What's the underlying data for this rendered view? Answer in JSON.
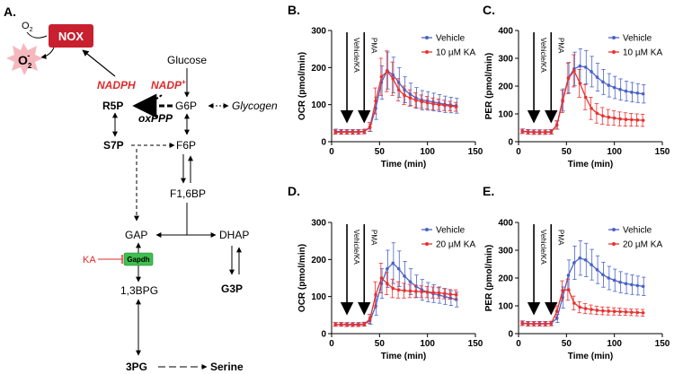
{
  "figure": {
    "panel_labels": [
      "A.",
      "B.",
      "C.",
      "D.",
      "E."
    ],
    "colors": {
      "vehicle": "#4a62c7",
      "ka": "#e8312e",
      "nox_fill": "#c8202f",
      "gapdh_fill": "#3fbf4f",
      "burst_fill": "#f5b8bd",
      "red_text": "#e02a2a"
    }
  },
  "pathway": {
    "nox": "NOX",
    "o2": "O",
    "o2_sub": "2",
    "superoxide": "O",
    "superoxide_sub": "2",
    "superoxide_sup": "-",
    "nadph": "NADPH",
    "nadp": "NADP",
    "nadp_sup": "+",
    "glucose": "Glucose",
    "g6p": "G6P",
    "glycogen": "Glycogen",
    "r5p": "R5P",
    "oxppp": "oxPPP",
    "s7p": "S7P",
    "f6p": "F6P",
    "f16bp": "F1,6BP",
    "gap": "GAP",
    "dhap": "DHAP",
    "g3p": "G3P",
    "ka": "KA",
    "gapdh": "Gapdh",
    "bpg": "1,3BPG",
    "pg3": "3PG",
    "serine": "Serine"
  },
  "chart_data": [
    {
      "panel": "B.",
      "type": "line",
      "ylabel": "OCR (pmol/min)",
      "xlabel": "Time (min)",
      "xlim": [
        0,
        150
      ],
      "ylim": [
        0,
        300
      ],
      "xticks": [
        0,
        50,
        100,
        150
      ],
      "yticks": [
        0,
        100,
        200,
        300
      ],
      "annotations": [
        "Vehicle/KA",
        "PMA"
      ],
      "injection_times": [
        16,
        34
      ],
      "x": [
        4,
        10,
        16,
        22,
        28,
        34,
        40,
        46,
        52,
        58,
        64,
        70,
        76,
        82,
        88,
        94,
        100,
        106,
        112,
        118,
        124,
        130
      ],
      "series": [
        {
          "name": "Vehicle",
          "color": "#4a62c7",
          "values": [
            28,
            27,
            27,
            27,
            27,
            28,
            38,
            90,
            160,
            192,
            180,
            160,
            140,
            128,
            118,
            112,
            110,
            107,
            104,
            101,
            99,
            97
          ],
          "errors": [
            6,
            6,
            6,
            6,
            6,
            6,
            10,
            30,
            45,
            50,
            48,
            40,
            35,
            30,
            28,
            26,
            25,
            24,
            23,
            22,
            21,
            20
          ]
        },
        {
          "name": "10 µM KA",
          "color": "#e8312e",
          "values": [
            26,
            26,
            26,
            26,
            26,
            27,
            40,
            110,
            175,
            190,
            170,
            140,
            125,
            118,
            112,
            108,
            105,
            102,
            100,
            98,
            96,
            94
          ],
          "errors": [
            6,
            6,
            6,
            6,
            6,
            6,
            12,
            35,
            50,
            55,
            45,
            30,
            25,
            22,
            20,
            18,
            17,
            16,
            15,
            14,
            13,
            12
          ]
        }
      ]
    },
    {
      "panel": "C.",
      "type": "line",
      "ylabel": "PER (pmol/min)",
      "xlabel": "Time (min)",
      "xlim": [
        0,
        150
      ],
      "ylim": [
        0,
        400
      ],
      "xticks": [
        0,
        50,
        100,
        150
      ],
      "yticks": [
        0,
        100,
        200,
        300,
        400
      ],
      "annotations": [
        "Vehicle/KA",
        "PMA"
      ],
      "injection_times": [
        16,
        34
      ],
      "x": [
        4,
        10,
        16,
        22,
        28,
        34,
        40,
        46,
        52,
        58,
        64,
        70,
        76,
        82,
        88,
        94,
        100,
        106,
        112,
        118,
        124,
        130
      ],
      "series": [
        {
          "name": "Vehicle",
          "color": "#4a62c7",
          "values": [
            38,
            36,
            35,
            35,
            35,
            36,
            60,
            150,
            230,
            262,
            272,
            268,
            252,
            232,
            215,
            203,
            195,
            188,
            182,
            178,
            175,
            172
          ],
          "errors": [
            8,
            8,
            8,
            8,
            8,
            8,
            15,
            40,
            55,
            60,
            62,
            60,
            55,
            50,
            45,
            42,
            40,
            38,
            36,
            35,
            34,
            33
          ]
        },
        {
          "name": "10 µM KA",
          "color": "#e8312e",
          "values": [
            37,
            35,
            34,
            34,
            34,
            35,
            60,
            145,
            228,
            255,
            210,
            160,
            120,
            102,
            93,
            88,
            85,
            82,
            80,
            79,
            78,
            77
          ],
          "errors": [
            8,
            8,
            8,
            8,
            8,
            8,
            15,
            40,
            55,
            58,
            50,
            45,
            40,
            35,
            30,
            28,
            26,
            25,
            24,
            23,
            22,
            22
          ]
        }
      ]
    },
    {
      "panel": "D.",
      "type": "line",
      "ylabel": "OCR (pmol/min)",
      "xlabel": "Time (min)",
      "xlim": [
        0,
        150
      ],
      "ylim": [
        0,
        300
      ],
      "xticks": [
        0,
        50,
        100,
        150
      ],
      "yticks": [
        0,
        100,
        200,
        300
      ],
      "annotations": [
        "Vehicle/KA",
        "PMA"
      ],
      "injection_times": [
        16,
        34
      ],
      "x": [
        4,
        10,
        16,
        22,
        28,
        34,
        40,
        46,
        52,
        58,
        64,
        70,
        76,
        82,
        88,
        94,
        100,
        106,
        112,
        118,
        124,
        130
      ],
      "series": [
        {
          "name": "Vehicle",
          "color": "#4a62c7",
          "values": [
            25,
            25,
            25,
            25,
            25,
            26,
            35,
            75,
            135,
            175,
            190,
            175,
            155,
            140,
            128,
            118,
            112,
            108,
            104,
            100,
            96,
            92
          ],
          "errors": [
            5,
            5,
            5,
            5,
            5,
            5,
            10,
            25,
            40,
            50,
            55,
            48,
            40,
            35,
            30,
            28,
            26,
            24,
            22,
            21,
            20,
            20
          ]
        },
        {
          "name": "20 µM KA",
          "color": "#e8312e",
          "values": [
            25,
            25,
            24,
            24,
            24,
            25,
            40,
            105,
            150,
            135,
            122,
            118,
            116,
            115,
            114,
            113,
            112,
            111,
            110,
            108,
            106,
            105
          ],
          "errors": [
            5,
            5,
            5,
            5,
            5,
            5,
            12,
            35,
            40,
            30,
            25,
            22,
            20,
            18,
            17,
            16,
            15,
            15,
            14,
            14,
            13,
            13
          ]
        }
      ]
    },
    {
      "panel": "E.",
      "type": "line",
      "ylabel": "PER (pmol/min)",
      "xlabel": "Time (min)",
      "xlim": [
        0,
        150
      ],
      "ylim": [
        0,
        400
      ],
      "xticks": [
        0,
        50,
        100,
        150
      ],
      "yticks": [
        0,
        100,
        200,
        300,
        400
      ],
      "annotations": [
        "Vehicle/KA",
        "PMA"
      ],
      "injection_times": [
        16,
        34
      ],
      "x": [
        4,
        10,
        16,
        22,
        28,
        34,
        40,
        46,
        52,
        58,
        64,
        70,
        76,
        82,
        88,
        94,
        100,
        106,
        112,
        118,
        124,
        130
      ],
      "series": [
        {
          "name": "Vehicle",
          "color": "#4a62c7",
          "values": [
            38,
            36,
            36,
            36,
            36,
            37,
            55,
            130,
            210,
            255,
            272,
            265,
            248,
            230,
            212,
            200,
            192,
            185,
            180,
            176,
            173,
            170
          ],
          "errors": [
            8,
            8,
            8,
            8,
            8,
            8,
            15,
            38,
            55,
            60,
            62,
            60,
            55,
            50,
            45,
            42,
            40,
            38,
            36,
            35,
            34,
            33
          ]
        },
        {
          "name": "20 µM KA",
          "color": "#e8312e",
          "values": [
            37,
            35,
            35,
            35,
            35,
            36,
            80,
            155,
            158,
            110,
            95,
            90,
            87,
            84,
            82,
            81,
            80,
            79,
            78,
            77,
            76,
            75
          ],
          "errors": [
            8,
            8,
            8,
            8,
            8,
            8,
            20,
            35,
            38,
            25,
            20,
            18,
            16,
            15,
            14,
            14,
            13,
            13,
            12,
            12,
            12,
            12
          ]
        }
      ]
    }
  ]
}
